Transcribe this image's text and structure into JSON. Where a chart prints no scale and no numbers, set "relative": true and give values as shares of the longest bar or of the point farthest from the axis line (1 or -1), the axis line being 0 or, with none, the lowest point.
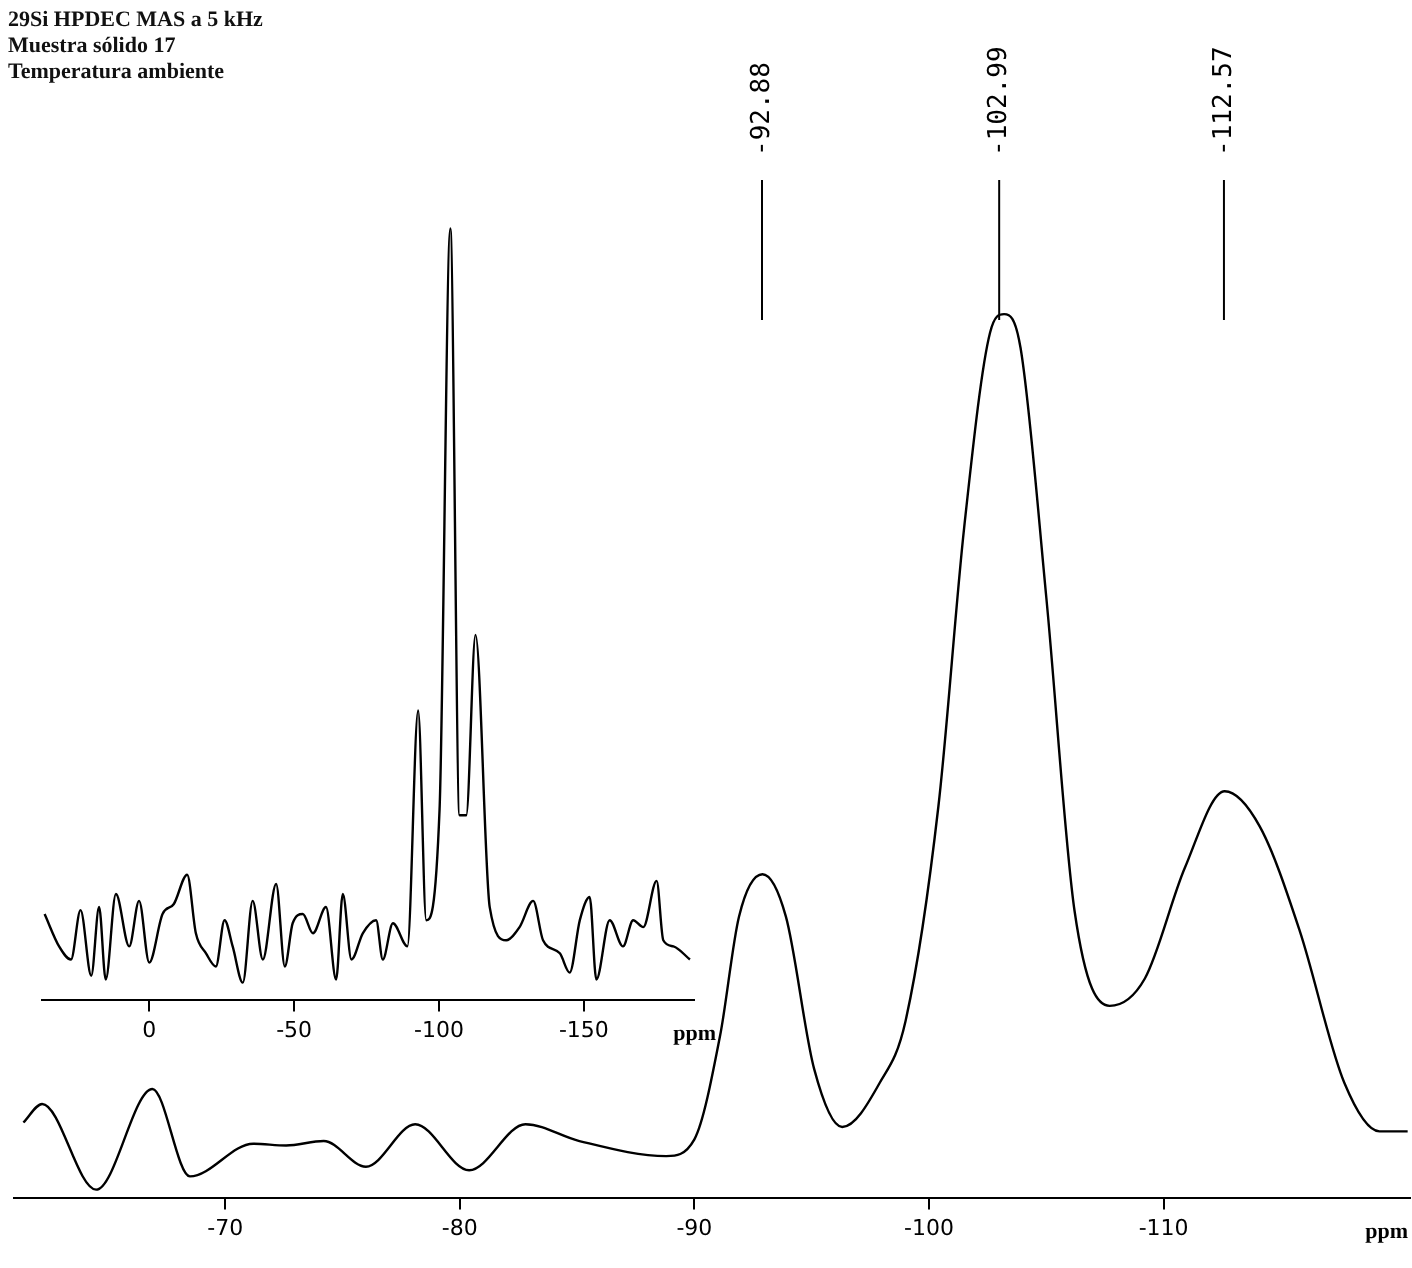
{
  "chart_data": [
    {
      "type": "line",
      "title": "29Si HPDEC MAS a 5 kHz",
      "subtitle": "Muestra sólido 17",
      "xlabel": "ppm",
      "relative": true,
      "xlim": [
        -61,
        -120.5
      ],
      "xticks": [
        -70,
        -80,
        -90,
        -100,
        -110
      ],
      "color": "#000000",
      "x": [
        -61.4,
        -62.2,
        -64.5,
        -66.9,
        -68.5,
        -71.2,
        -72.6,
        -74.2,
        -76.0,
        -78.1,
        -80.4,
        -82.8,
        -85.1,
        -88.8,
        -90.0,
        -91.1,
        -91.9,
        -92.9,
        -93.9,
        -95.1,
        -96.3,
        -97.9,
        -99.0,
        -100.4,
        -101.5,
        -102.6,
        -103.2,
        -103.9,
        -105.0,
        -106.2,
        -107.7,
        -109.2,
        -110.9,
        -112.6,
        -114.1,
        -115.8,
        -117.7,
        -119.2,
        -120.4
      ],
      "values": [
        0.085,
        0.106,
        0.009,
        0.123,
        0.024,
        0.061,
        0.059,
        0.064,
        0.035,
        0.083,
        0.031,
        0.083,
        0.064,
        0.047,
        0.066,
        0.184,
        0.318,
        0.366,
        0.318,
        0.146,
        0.08,
        0.13,
        0.2,
        0.443,
        0.759,
        0.979,
        1,
        0.962,
        0.679,
        0.325,
        0.217,
        0.248,
        0.373,
        0.46,
        0.42,
        0.302,
        0.13,
        0.075,
        0.075
      ],
      "annotations": [
        "Temperatura ambiente",
        {
          "text": "-92.88",
          "x": -92.88
        },
        {
          "text": "-102.99",
          "x": -102.99
        },
        {
          "text": "-112.57",
          "x": -112.57
        }
      ]
    },
    {
      "type": "line",
      "xlabel": "ppm",
      "relative": true,
      "xlim": [
        37,
        -188
      ],
      "xticks": [
        0,
        -50,
        -100,
        -150
      ],
      "color": "#000000",
      "x": [
        36.1,
        31.1,
        27.0,
        23.7,
        20.0,
        17.3,
        15.0,
        11.5,
        6.9,
        3.5,
        0,
        -4.6,
        -8.5,
        -13.1,
        -16.1,
        -19.6,
        -23.0,
        -26.0,
        -28.8,
        -32.3,
        -35.7,
        -39.2,
        -43.8,
        -46.8,
        -49.5,
        -53.0,
        -56.5,
        -61.0,
        -64.5,
        -66.8,
        -69.8,
        -73.7,
        -78.3,
        -80.6,
        -84.1,
        -89.1,
        -92.8,
        -95.6,
        -100.2,
        -103.9,
        -107.1,
        -109.4,
        -112.6,
        -117.5,
        -123.2,
        -127.8,
        -132.5,
        -135.9,
        -141.7,
        -145.1,
        -148.6,
        -152.0,
        -154.3,
        -158.9,
        -163.5,
        -167.0,
        -170.5,
        -175.1,
        -177.4,
        -180.9,
        -186.6
      ],
      "values": [
        0.111,
        0.069,
        0.052,
        0.116,
        0.031,
        0.12,
        0.026,
        0.137,
        0.069,
        0.128,
        0.048,
        0.111,
        0.124,
        0.162,
        0.086,
        0.06,
        0.043,
        0.103,
        0.069,
        0.022,
        0.128,
        0.052,
        0.15,
        0.043,
        0.099,
        0.111,
        0.086,
        0.12,
        0.026,
        0.137,
        0.052,
        0.086,
        0.103,
        0.052,
        0.099,
        0.069,
        0.375,
        0.103,
        0.247,
        1.0,
        0.239,
        0.239,
        0.473,
        0.12,
        0.077,
        0.094,
        0.128,
        0.077,
        0.06,
        0.035,
        0.103,
        0.133,
        0.026,
        0.103,
        0.069,
        0.103,
        0.094,
        0.154,
        0.077,
        0.069,
        0.052
      ]
    }
  ]
}
